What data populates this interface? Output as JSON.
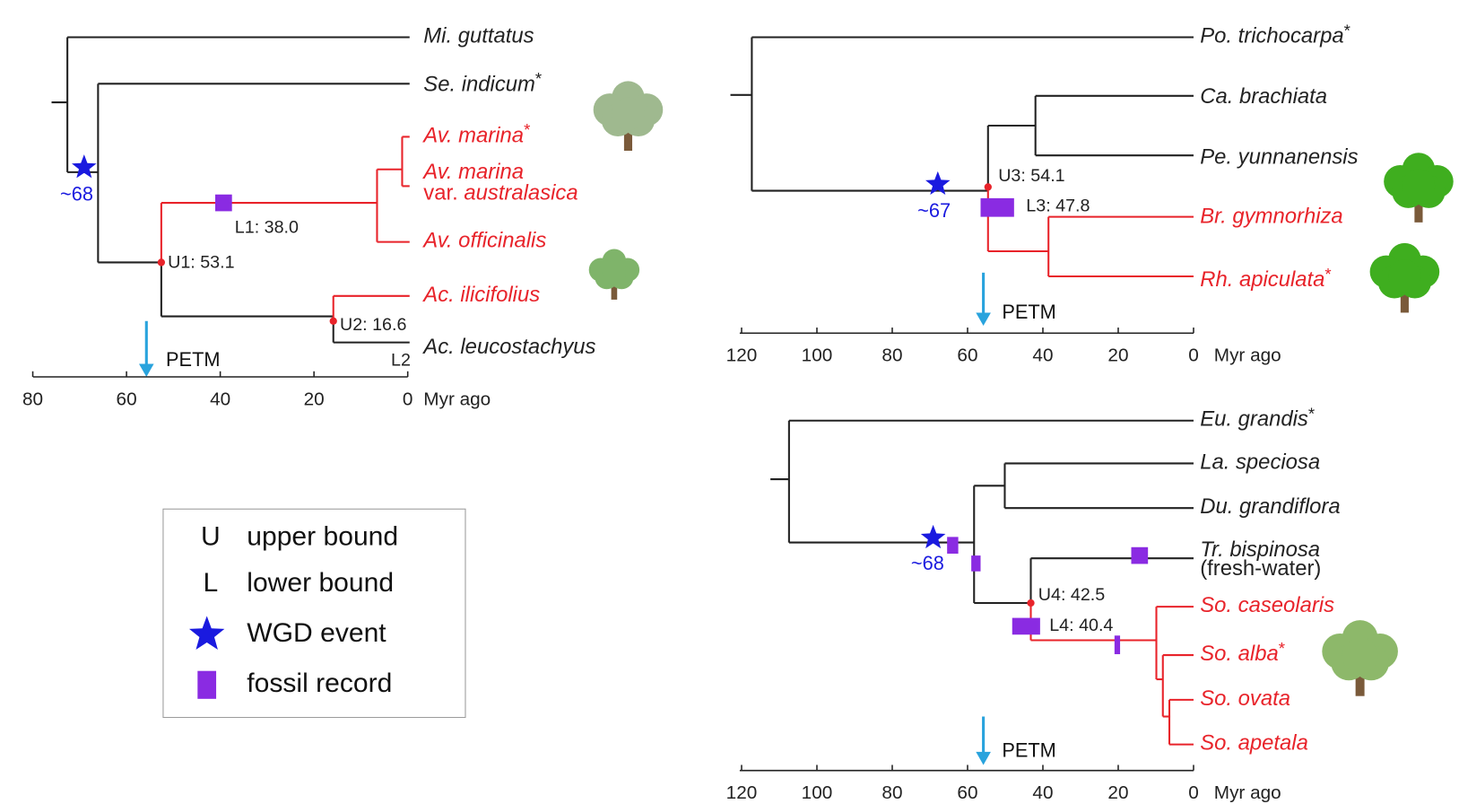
{
  "panels": [
    {
      "taxa": [
        {
          "name": "Mi. guttatus"
        },
        {
          "name": "Se. indicum",
          "suffix": "*"
        },
        {
          "name": "Av. marina",
          "suffix": "*"
        },
        {
          "name": "Av. marina",
          "rank": "var.",
          "epithet": "australasica"
        },
        {
          "name": "Av. officinalis"
        },
        {
          "name": "Ac. ilicifolius"
        },
        {
          "name": "Ac. leucostachyus"
        }
      ],
      "node_labels": [
        "U1: 53.1",
        "L1: 38.0",
        "U2: 16.6",
        "L2"
      ],
      "wgd": "~68",
      "event": "PETM",
      "axis": {
        "ticks": [
          80,
          60,
          40,
          20,
          0
        ],
        "unit": "Myr ago"
      }
    },
    {
      "taxa": [
        {
          "name": "Po. trichocarpa",
          "suffix": "*"
        },
        {
          "name": "Ca. brachiata"
        },
        {
          "name": "Pe. yunnanensis"
        },
        {
          "name": "Br. gymnorhiza"
        },
        {
          "name": "Rh. apiculata",
          "suffix": "*"
        }
      ],
      "node_labels": [
        "U3: 54.1",
        "L3: 47.8"
      ],
      "wgd": "~67",
      "event": "PETM",
      "axis": {
        "ticks": [
          120,
          100,
          80,
          60,
          40,
          20,
          0
        ],
        "unit": "Myr ago"
      }
    },
    {
      "taxa": [
        {
          "name": "Eu. grandis",
          "suffix": "*"
        },
        {
          "name": "La. speciosa"
        },
        {
          "name": "Du. grandiflora"
        },
        {
          "name": "Tr. bispinosa",
          "note": "(fresh-water)"
        },
        {
          "name": "So. caseolaris"
        },
        {
          "name": "So. alba",
          "suffix": "*"
        },
        {
          "name": "So. ovata"
        },
        {
          "name": "So. apetala"
        }
      ],
      "node_labels": [
        "U4: 42.5",
        "L4: 40.4"
      ],
      "wgd": "~68",
      "event": "PETM",
      "axis": {
        "ticks": [
          120,
          100,
          80,
          60,
          40,
          20,
          0
        ],
        "unit": "Myr ago"
      }
    }
  ],
  "legend": [
    {
      "symbol": "U",
      "text": "upper bound"
    },
    {
      "symbol": "L",
      "text": "lower bound"
    },
    {
      "text": "WGD event"
    },
    {
      "text": "fossil record"
    }
  ]
}
